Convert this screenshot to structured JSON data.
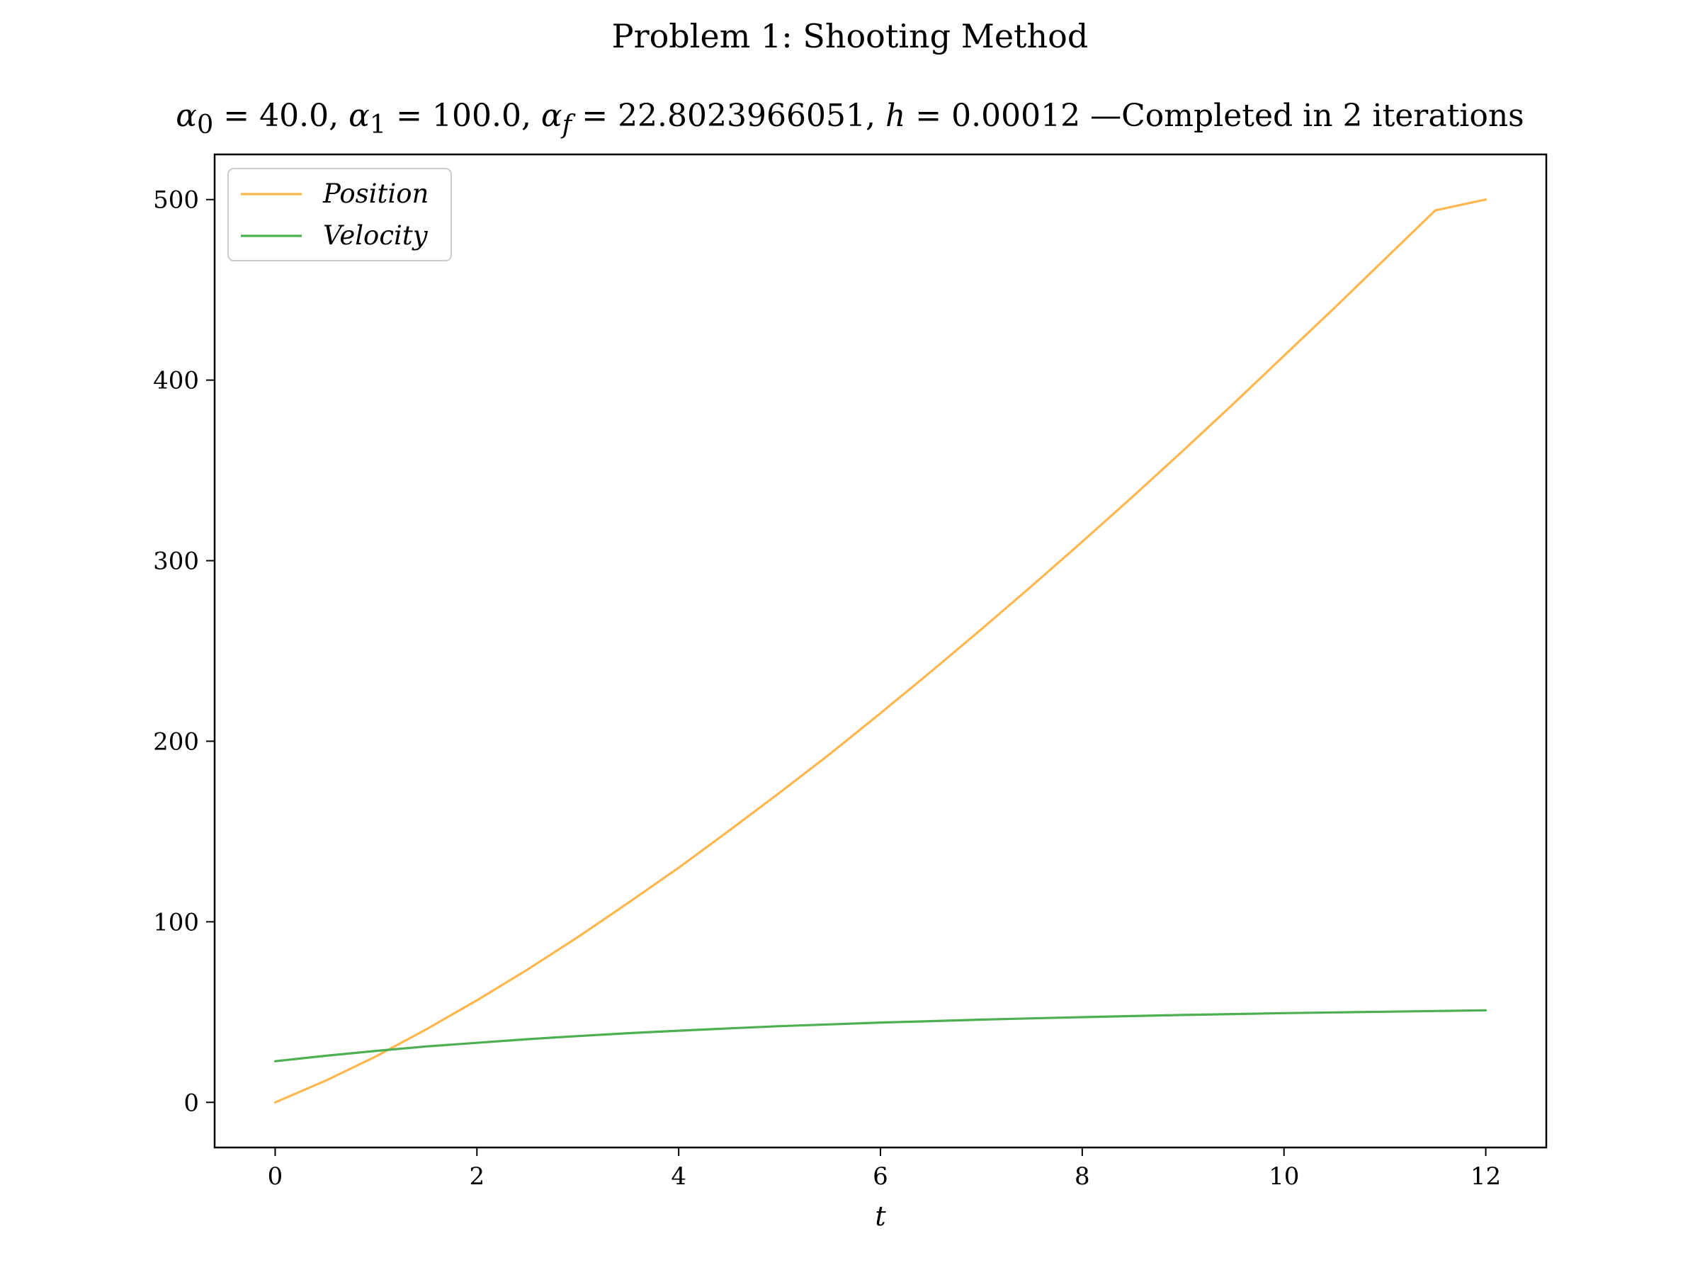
{
  "suptitle": "Problem 1: Shooting Method",
  "subtitle": {
    "alpha0": "40.0",
    "alpha1": "100.0",
    "alphaf": "22.8023966051",
    "h": "0.00012",
    "tail": "—Completed in 2 iterations"
  },
  "colors": {
    "position": "#ffb74d",
    "velocity": "#4caf50"
  },
  "chart_data": {
    "type": "line",
    "xlabel": "t",
    "ylabel": "",
    "xlim": [
      -0.6,
      12.6
    ],
    "ylim": [
      -25,
      525
    ],
    "xticks": [
      0,
      2,
      4,
      6,
      8,
      10,
      12
    ],
    "yticks": [
      0,
      100,
      200,
      300,
      400,
      500
    ],
    "grid": false,
    "legend_position": "top-left",
    "x": [
      0,
      0.5,
      1,
      1.5,
      2,
      2.5,
      3,
      3.5,
      4,
      4.5,
      5,
      5.5,
      6,
      6.5,
      7,
      7.5,
      8,
      8.5,
      9,
      9.5,
      10,
      10.5,
      11,
      11.5,
      12
    ],
    "series": [
      {
        "name": "Position",
        "values": [
          0,
          12.0,
          25.5,
          40.5,
          56.5,
          73.5,
          91.5,
          110.5,
          130.0,
          150.5,
          171.5,
          193.0,
          215.5,
          238.5,
          262.0,
          286.0,
          310.5,
          335.5,
          361.0,
          387.0,
          413.5,
          440.0,
          467.0,
          494.0,
          500.0
        ]
      },
      {
        "name": "Velocity",
        "values": [
          22.8,
          25.8,
          28.5,
          31.0,
          33.0,
          35.0,
          36.7,
          38.3,
          39.7,
          41.0,
          42.2,
          43.2,
          44.2,
          45.0,
          45.8,
          46.5,
          47.2,
          47.8,
          48.4,
          48.9,
          49.4,
          49.8,
          50.2,
          50.6,
          51.0
        ]
      }
    ]
  }
}
